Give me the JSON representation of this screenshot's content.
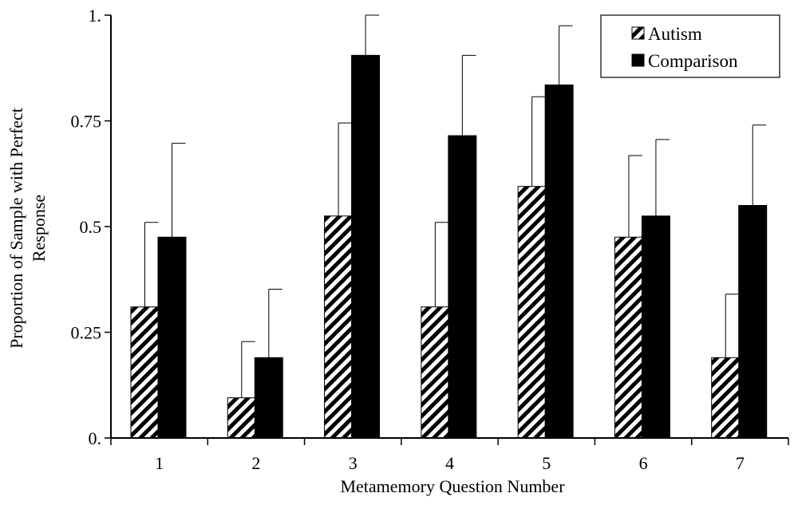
{
  "chart_data": {
    "type": "bar",
    "title": "",
    "xlabel": "Metamemory Question Number",
    "ylabel_lines": [
      "Proportion of Sample with Perfect",
      "Response"
    ],
    "ylim": [
      0,
      1
    ],
    "yticks": [
      0,
      0.25,
      0.5,
      0.75,
      1
    ],
    "ytick_labels": [
      "0.",
      "0.25",
      "0.5",
      "0.75",
      "1."
    ],
    "categories": [
      "1",
      "2",
      "3",
      "4",
      "5",
      "6",
      "7"
    ],
    "legend_placement": "top-right",
    "grid": false,
    "series": [
      {
        "name": "Autism",
        "style": "hatched",
        "values": [
          0.31,
          0.095,
          0.525,
          0.31,
          0.595,
          0.475,
          0.19
        ],
        "error_upper": [
          0.51,
          0.228,
          0.745,
          0.51,
          0.807,
          0.668,
          0.34
        ]
      },
      {
        "name": "Comparison",
        "style": "solid",
        "values": [
          0.475,
          0.19,
          0.905,
          0.715,
          0.835,
          0.525,
          0.55
        ],
        "error_upper": [
          0.697,
          0.352,
          1.0,
          0.905,
          0.975,
          0.706,
          0.74
        ]
      }
    ]
  },
  "colors": {
    "bar_solid": "#000000",
    "hatch": "#000000",
    "background": "#ffffff"
  }
}
